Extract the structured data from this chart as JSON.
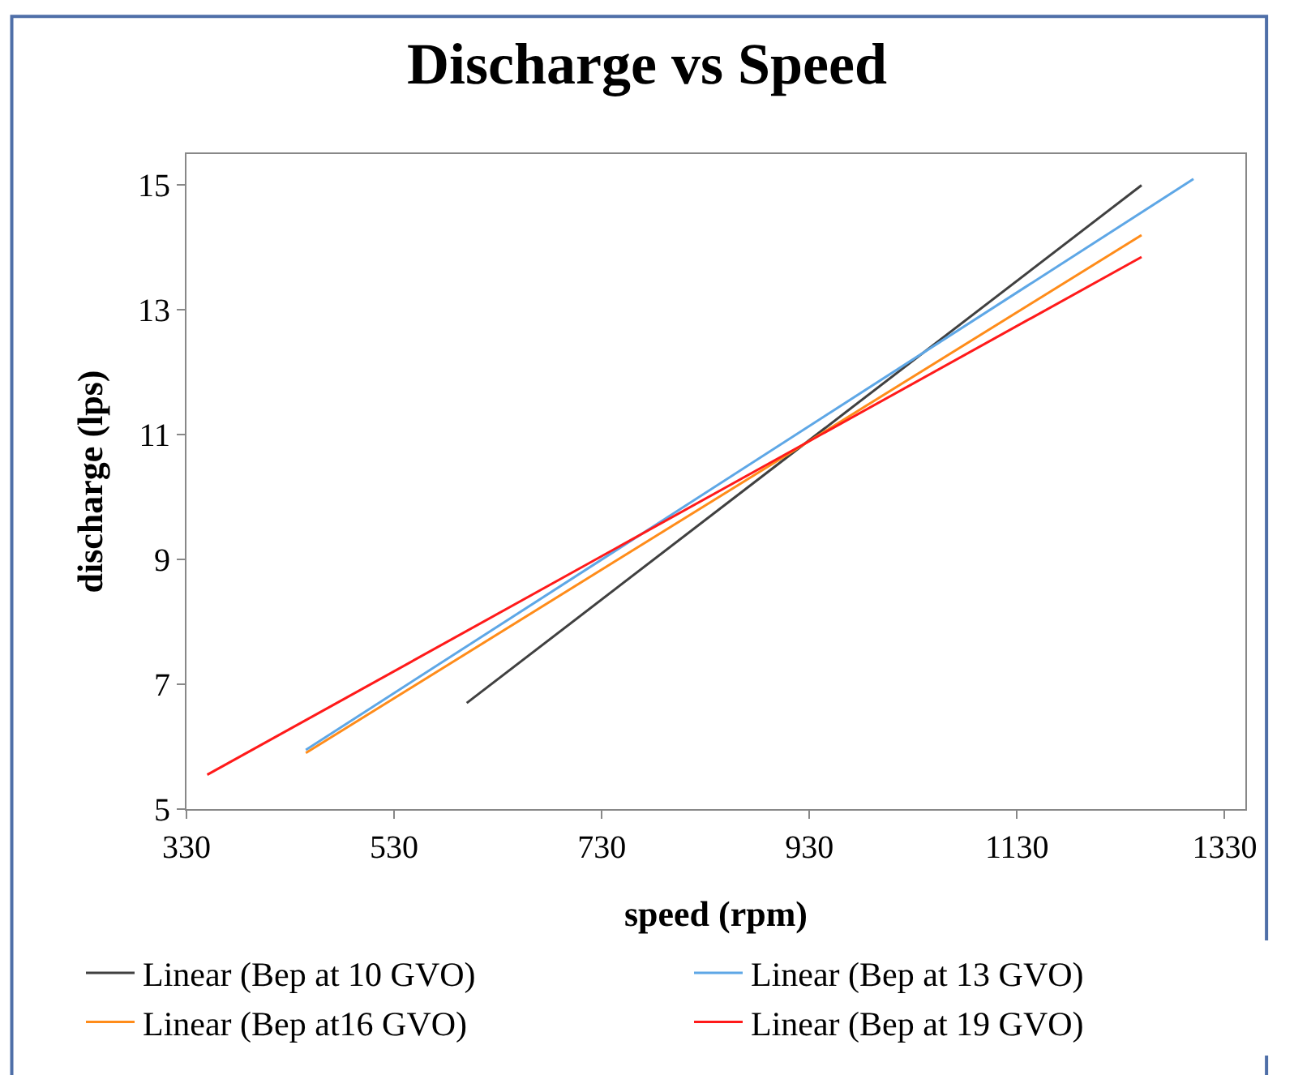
{
  "chart_data": {
    "type": "line",
    "title": "Discharge vs Speed",
    "xlabel": "speed (rpm)",
    "ylabel": "discharge (lps)",
    "series": [
      {
        "name": "Linear (Bep at 10 GVO)",
        "color": "#404040",
        "x": [
          600,
          1250
        ],
        "values": [
          6.7,
          15.0
        ]
      },
      {
        "name": "Linear (Bep at 13 GVO)",
        "color": "#5ea7e6",
        "x": [
          445,
          1300
        ],
        "values": [
          5.95,
          15.1
        ]
      },
      {
        "name": "Linear (Bep at16 GVO)",
        "color": "#ff8c1a",
        "x": [
          445,
          1250
        ],
        "values": [
          5.9,
          14.2
        ]
      },
      {
        "name": "Linear (Bep at 19 GVO)",
        "color": "#ff1a1a",
        "x": [
          350,
          1250
        ],
        "values": [
          5.55,
          13.85
        ]
      }
    ],
    "xlim": [
      330,
      1350
    ],
    "xticks": [
      330,
      530,
      730,
      930,
      1130,
      1330
    ],
    "ylim": [
      5,
      15.5
    ],
    "yticks": [
      5,
      7,
      9,
      11,
      13,
      15
    ],
    "legend": "bottom",
    "marker": "none",
    "line_style": "solid"
  }
}
